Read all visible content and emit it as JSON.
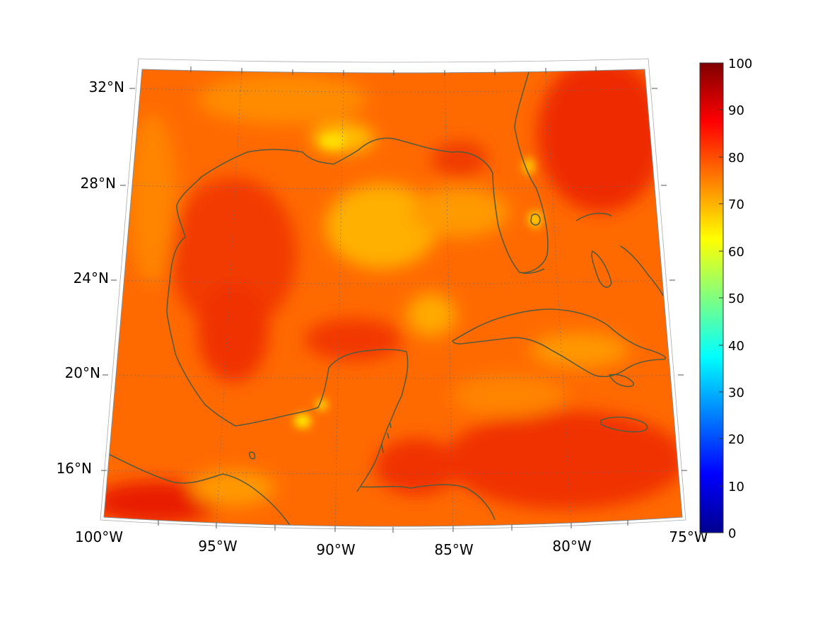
{
  "chart_data": {
    "type": "heatmap",
    "map_projection": "conic",
    "region": "Gulf of Mexico and Caribbean",
    "lon_range": [
      -100,
      -75
    ],
    "lat_range": [
      14,
      32
    ],
    "lon_ticks": [
      "100°W",
      "95°W",
      "90°W",
      "85°W",
      "80°W",
      "75°W"
    ],
    "lat_ticks": [
      "32°N",
      "28°N",
      "24°N",
      "20°N",
      "16°N"
    ],
    "graticule": "dotted",
    "colorbar": {
      "colormap": "jet",
      "min": 0,
      "max": 100,
      "ticks": [
        "100",
        "90",
        "80",
        "70",
        "60",
        "50",
        "40",
        "30",
        "20",
        "10",
        "0"
      ],
      "placement": "right"
    },
    "field_range_estimate": [
      62,
      92
    ],
    "hotspots": [
      {
        "name": "western Gulf",
        "approx_value": 86
      },
      {
        "name": "east of Florida",
        "approx_value": 88
      },
      {
        "name": "southwest corner",
        "approx_value": 90
      },
      {
        "name": "central Caribbean",
        "approx_value": 85
      }
    ],
    "lowspots": [
      {
        "name": "central Gulf",
        "approx_value": 70
      },
      {
        "name": "Yucatan Channel",
        "approx_value": 70
      },
      {
        "name": "Louisiana coast",
        "approx_value": 66
      }
    ],
    "coastline_color": "#5a5a3a"
  }
}
